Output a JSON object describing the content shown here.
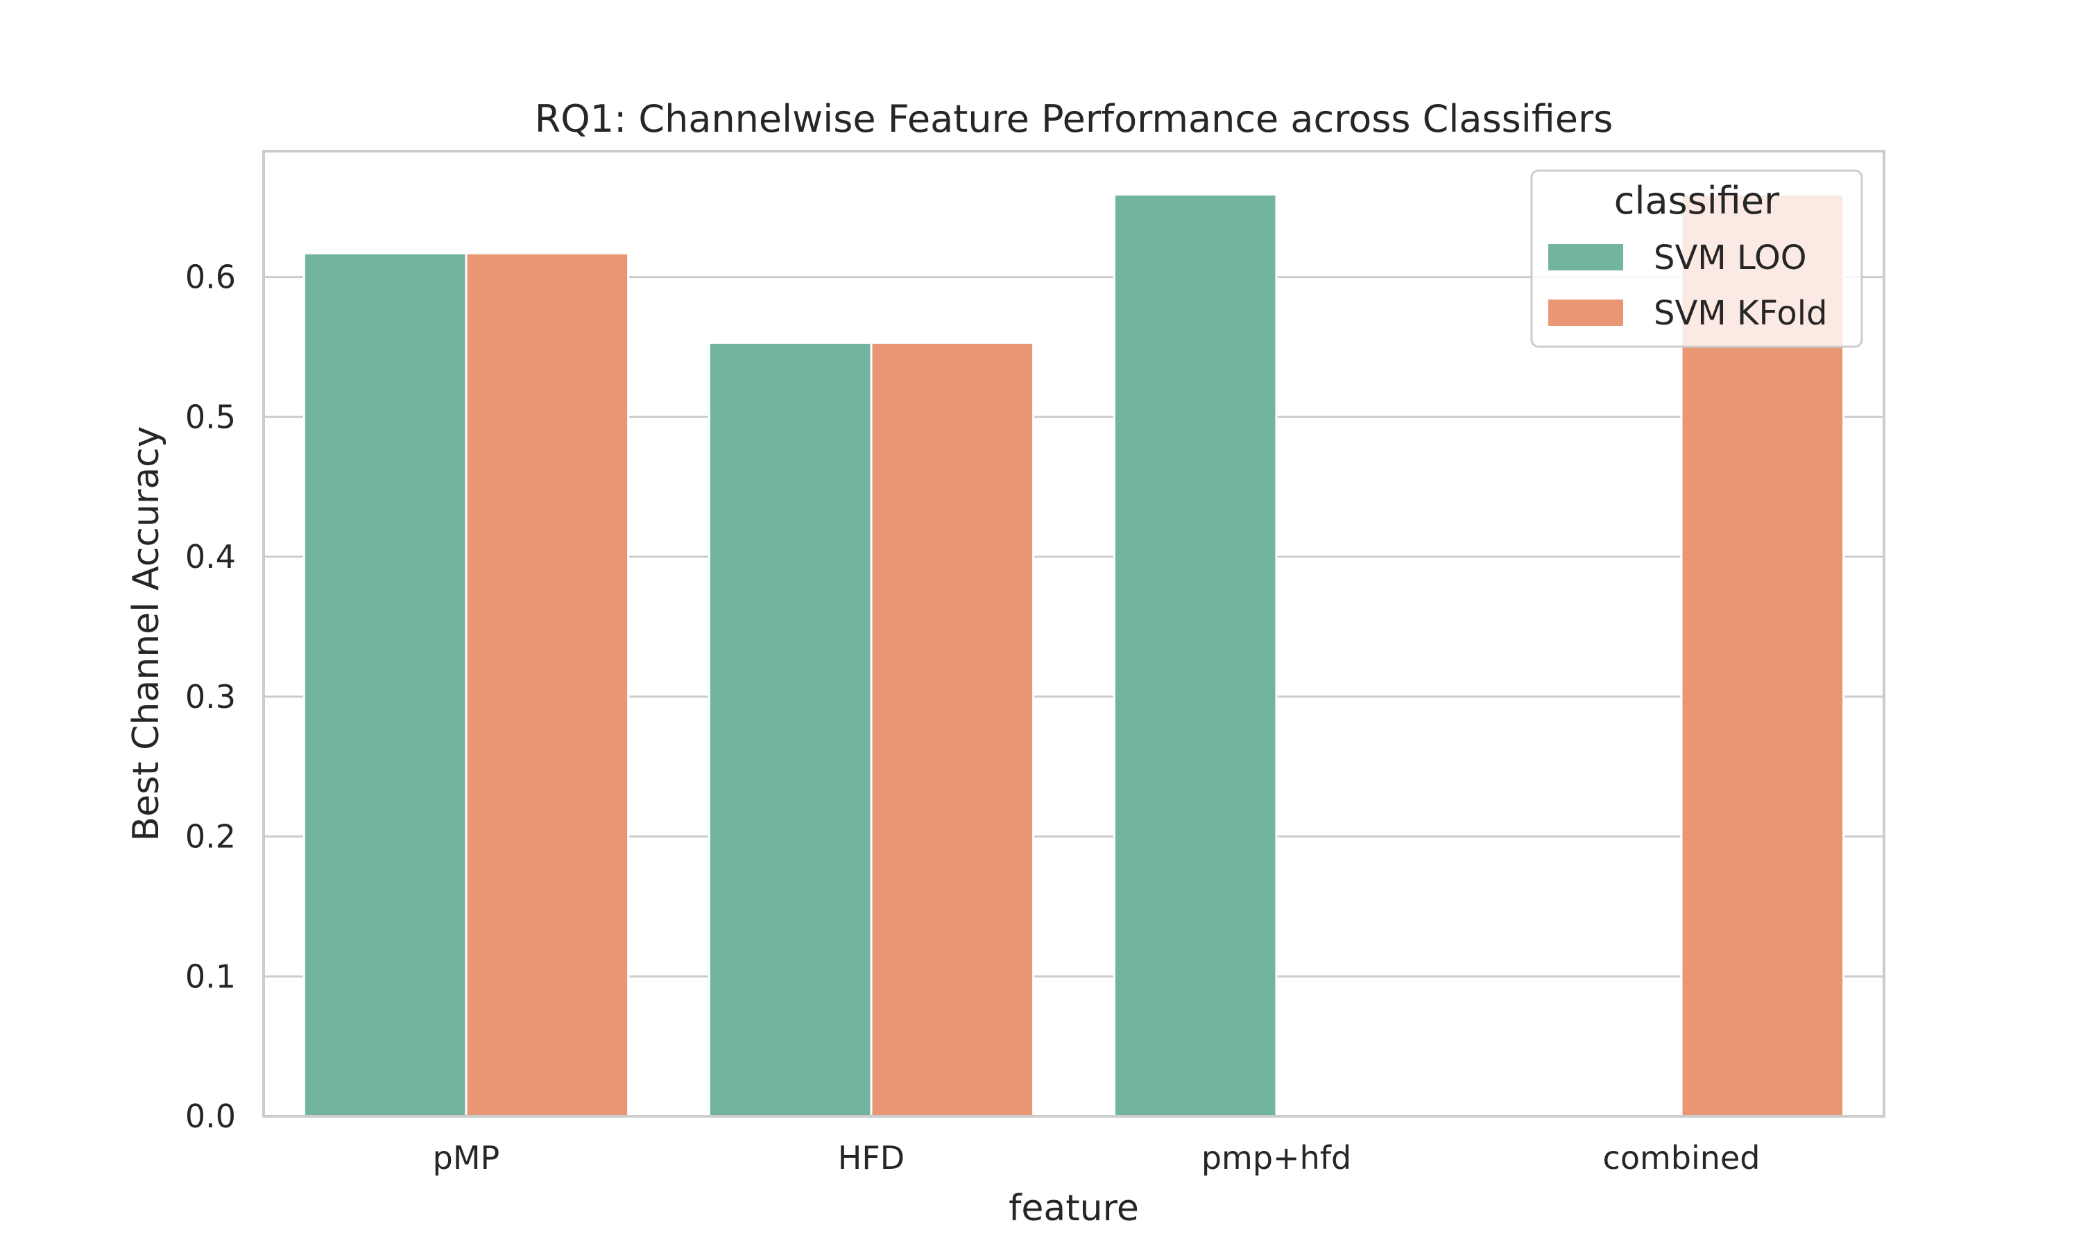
{
  "chart_data": {
    "type": "bar",
    "title": "RQ1: Channelwise Feature Performance across Classifiers",
    "xlabel": "feature",
    "ylabel": "Best Channel Accuracy",
    "categories": [
      "pMP",
      "HFD",
      "pmp+hfd",
      "combined"
    ],
    "series": [
      {
        "name": "SVM LOO",
        "color": "#73b4a0",
        "values": [
          0.617,
          0.553,
          0.659,
          null
        ]
      },
      {
        "name": "SVM KFold",
        "color": "#e99674",
        "values": [
          0.617,
          0.553,
          null,
          0.659
        ]
      }
    ],
    "ylim": [
      0,
      0.69
    ],
    "yticks": [
      0.0,
      0.1,
      0.2,
      0.3,
      0.4,
      0.5,
      0.6
    ],
    "ytick_labels": [
      "0.0",
      "0.1",
      "0.2",
      "0.3",
      "0.4",
      "0.5",
      "0.6"
    ],
    "grid": "y",
    "legend": {
      "title": "classifier",
      "placement": "top-right"
    }
  }
}
